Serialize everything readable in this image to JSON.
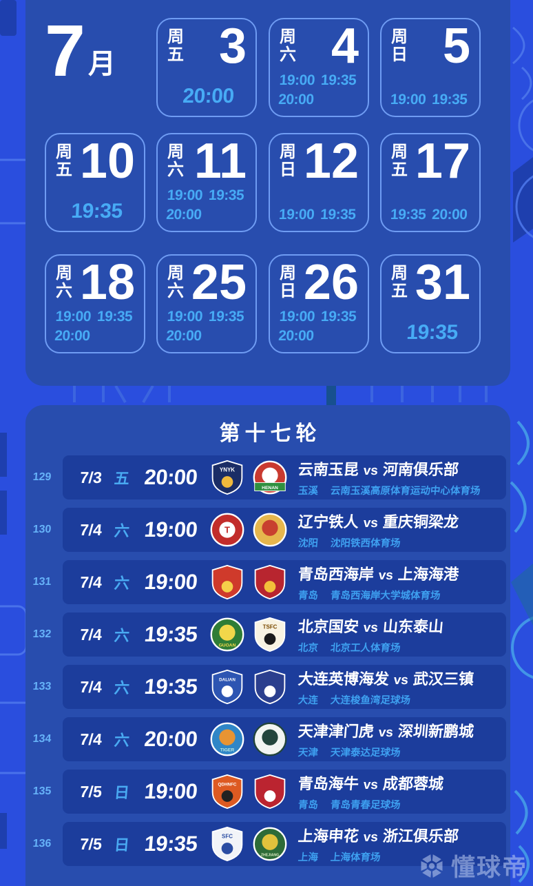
{
  "theme": {
    "background": "#2a4ede",
    "panel": "#284dae",
    "row_card": "#1c3d9c",
    "card_border": "#6f9cf3",
    "accent_time": "#47abf5",
    "accent_venue": "#3ea0f0",
    "text_white": "#ffffff"
  },
  "calendar": {
    "month_number": "7",
    "month_unit": "月",
    "cards": [
      {
        "week": "周五",
        "day": "3",
        "times": [
          "20:00"
        ],
        "col": 1,
        "row": 0
      },
      {
        "week": "周六",
        "day": "4",
        "times": [
          "19:00",
          "19:35",
          "20:00"
        ],
        "col": 2,
        "row": 0
      },
      {
        "week": "周日",
        "day": "5",
        "times": [
          "19:00",
          "19:35"
        ],
        "col": 3,
        "row": 0
      },
      {
        "week": "周五",
        "day": "10",
        "times": [
          "19:35"
        ],
        "col": 0,
        "row": 1
      },
      {
        "week": "周六",
        "day": "11",
        "times": [
          "19:00",
          "19:35",
          "20:00"
        ],
        "col": 1,
        "row": 1
      },
      {
        "week": "周日",
        "day": "12",
        "times": [
          "19:00",
          "19:35"
        ],
        "col": 2,
        "row": 1
      },
      {
        "week": "周五",
        "day": "17",
        "times": [
          "19:35",
          "20:00"
        ],
        "col": 3,
        "row": 1
      },
      {
        "week": "周六",
        "day": "18",
        "times": [
          "19:00",
          "19:35",
          "20:00"
        ],
        "col": 0,
        "row": 2
      },
      {
        "week": "周六",
        "day": "25",
        "times": [
          "19:00",
          "19:35",
          "20:00"
        ],
        "col": 1,
        "row": 2
      },
      {
        "week": "周日",
        "day": "26",
        "times": [
          "19:00",
          "19:35",
          "20:00"
        ],
        "col": 2,
        "row": 2
      },
      {
        "week": "周五",
        "day": "31",
        "times": [
          "19:35"
        ],
        "col": 3,
        "row": 2
      }
    ]
  },
  "round": {
    "title": "第十七轮",
    "vs_label": "vs"
  },
  "matches": [
    {
      "no": "129",
      "date": "7/3",
      "week": "五",
      "time": "20:00",
      "home": "云南玉昆",
      "away": "河南俱乐部",
      "city": "玉溪",
      "venue": "云南玉溪高原体育运动中心体育场",
      "home_badge": {
        "name": "yunnan-yukun-crest",
        "shape": "shield",
        "c1": "#1b2d66",
        "c2": "#f0b93c",
        "text": "YNYK",
        "tc": "#ffffff"
      },
      "away_badge": {
        "name": "henan-crest",
        "shape": "circle",
        "c1": "#c93a30",
        "c2": "#ffffff",
        "band": "#2f9040",
        "text": "HENAN",
        "tc": "#ffffff"
      }
    },
    {
      "no": "130",
      "date": "7/4",
      "week": "六",
      "time": "19:00",
      "home": "辽宁铁人",
      "away": "重庆铜梁龙",
      "city": "沈阳",
      "venue": "沈阳铁西体育场",
      "home_badge": {
        "name": "liaoning-tieren-crest",
        "shape": "circle",
        "c1": "#c22d2b",
        "c2": "#ffffff",
        "text": "T",
        "tc": "#c22d2b",
        "tp": "c"
      },
      "away_badge": {
        "name": "chongqing-tongliang-dragon-crest",
        "shape": "circle",
        "c1": "#e6b64d",
        "c2": "#c8402f"
      }
    },
    {
      "no": "131",
      "date": "7/4",
      "week": "六",
      "time": "19:00",
      "home": "青岛西海岸",
      "away": "上海海港",
      "city": "青岛",
      "venue": "青岛西海岸大学城体育场",
      "home_badge": {
        "name": "qingdao-west-coast-crest",
        "shape": "shield",
        "c1": "#cf3a2b",
        "c2": "#f5d04a"
      },
      "away_badge": {
        "name": "shanghai-port-crest",
        "shape": "shield",
        "c1": "#b8252f",
        "c2": "#f2c03a"
      }
    },
    {
      "no": "132",
      "date": "7/4",
      "week": "六",
      "time": "19:35",
      "home": "北京国安",
      "away": "山东泰山",
      "city": "北京",
      "venue": "北京工人体育场",
      "home_badge": {
        "name": "beijing-guoan-crest",
        "shape": "circle",
        "c1": "#2f7d36",
        "c2": "#f2d74a",
        "text": "GUOAN",
        "tc": "#f2d74a"
      },
      "away_badge": {
        "name": "shandong-taishan-crest",
        "shape": "shield",
        "c1": "#f8f3e2",
        "c2": "#1a1a1a",
        "text": "TSFC",
        "tc": "#7a4a00"
      }
    },
    {
      "no": "133",
      "date": "7/4",
      "week": "六",
      "time": "19:35",
      "home": "大连英博海发",
      "away": "武汉三镇",
      "city": "大连",
      "venue": "大连梭鱼湾足球场",
      "home_badge": {
        "name": "dalian-yingbo-crest",
        "shape": "shield",
        "c1": "#2d55b2",
        "c2": "#ffffff",
        "text": "DALIAN",
        "tc": "#ffffff"
      },
      "away_badge": {
        "name": "wuhan-three-towns-crest",
        "shape": "shield",
        "c1": "#2b3f8e",
        "c2": "#ffffff"
      }
    },
    {
      "no": "134",
      "date": "7/4",
      "week": "六",
      "time": "20:00",
      "home": "天津津门虎",
      "away": "深圳新鹏城",
      "city": "天津",
      "venue": "天津泰达足球场",
      "home_badge": {
        "name": "tianjin-jinmen-tiger-crest",
        "shape": "circle",
        "c1": "#2f86c7",
        "c2": "#e89433",
        "text": "TIGER",
        "tc": "#bdeae2"
      },
      "away_badge": {
        "name": "shenzhen-peng-city-crest",
        "shape": "circle",
        "c1": "#f2f5f2",
        "c2": "#23453c",
        "ring": "#23453c"
      }
    },
    {
      "no": "135",
      "date": "7/5",
      "week": "日",
      "time": "19:00",
      "home": "青岛海牛",
      "away": "成都蓉城",
      "city": "青岛",
      "venue": "青岛青春足球场",
      "home_badge": {
        "name": "qingdao-hainiu-crest",
        "shape": "shield",
        "c1": "#dd5a22",
        "c2": "#222222",
        "text": "QDHNFC",
        "tc": "#ffffff"
      },
      "away_badge": {
        "name": "chengdu-rongcheng-crest",
        "shape": "shield",
        "c1": "#bb2430",
        "c2": "#ffffff"
      }
    },
    {
      "no": "136",
      "date": "7/5",
      "week": "日",
      "time": "19:35",
      "home": "上海申花",
      "away": "浙江俱乐部",
      "city": "上海",
      "venue": "上海体育场",
      "home_badge": {
        "name": "shanghai-shenhua-crest",
        "shape": "shield",
        "c1": "#f2f4f8",
        "c2": "#2b4da3",
        "text": "SFC",
        "tc": "#2b4da3"
      },
      "away_badge": {
        "name": "zhejiang-crest",
        "shape": "circle",
        "c1": "#2e6b38",
        "c2": "#e2c23c",
        "text": "ZHEJIANG",
        "tc": "#d8e8c0"
      }
    }
  ],
  "watermark": {
    "text": "懂球帝",
    "icon": "dongqiudi-ball-icon"
  }
}
